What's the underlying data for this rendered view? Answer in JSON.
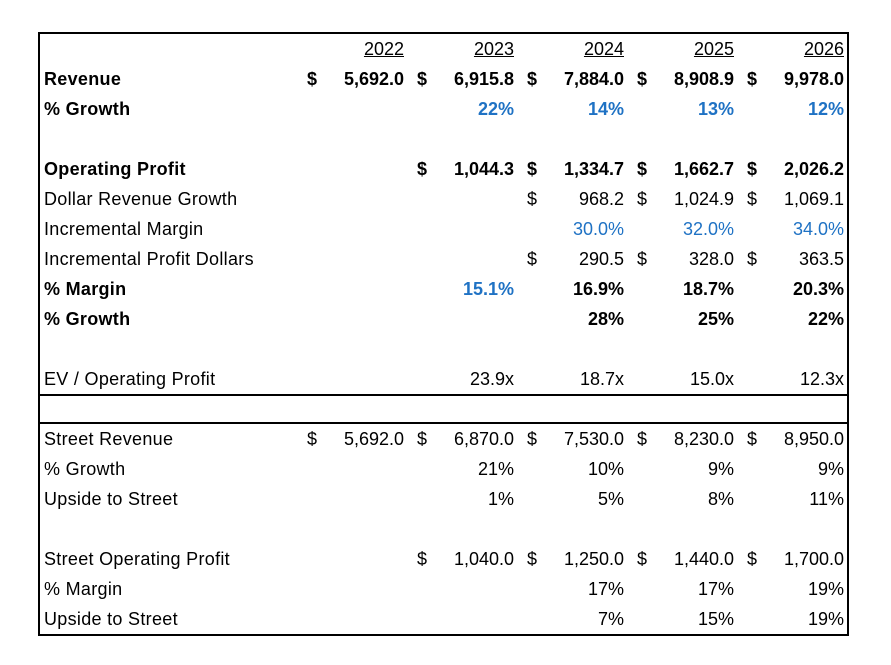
{
  "header": {
    "years": [
      "2022",
      "2023",
      "2024",
      "2025",
      "2026"
    ]
  },
  "sections": [
    {
      "rows": [
        {
          "label": "Revenue",
          "bold": true,
          "cells": [
            {
              "currency": "$",
              "text": "5,692.0"
            },
            {
              "currency": "$",
              "text": "6,915.8"
            },
            {
              "currency": "$",
              "text": "7,884.0"
            },
            {
              "currency": "$",
              "text": "8,908.9"
            },
            {
              "currency": "$",
              "text": "9,978.0"
            }
          ]
        },
        {
          "label": "% Growth",
          "bold": true,
          "cells": [
            null,
            {
              "text": "22%",
              "color": "#1f72c4"
            },
            {
              "text": "14%",
              "color": "#1f72c4"
            },
            {
              "text": "13%",
              "color": "#1f72c4"
            },
            {
              "text": "12%",
              "color": "#1f72c4"
            }
          ]
        }
      ]
    },
    {
      "rows": [
        {
          "label": "Operating Profit",
          "bold": true,
          "cells": [
            null,
            {
              "currency": "$",
              "text": "1,044.3"
            },
            {
              "currency": "$",
              "text": "1,334.7"
            },
            {
              "currency": "$",
              "text": "1,662.7"
            },
            {
              "currency": "$",
              "text": "2,026.2"
            }
          ]
        },
        {
          "label": "Dollar Revenue Growth",
          "bold": false,
          "cells": [
            null,
            null,
            {
              "currency": "$",
              "text": "968.2"
            },
            {
              "currency": "$",
              "text": "1,024.9"
            },
            {
              "currency": "$",
              "text": "1,069.1"
            }
          ]
        },
        {
          "label": "Incremental Margin",
          "bold": false,
          "cells": [
            null,
            null,
            {
              "text": "30.0%",
              "color": "#1f72c4"
            },
            {
              "text": "32.0%",
              "color": "#1f72c4"
            },
            {
              "text": "34.0%",
              "color": "#1f72c4"
            }
          ]
        },
        {
          "label": "Incremental Profit Dollars",
          "bold": false,
          "cells": [
            null,
            null,
            {
              "currency": "$",
              "text": "290.5"
            },
            {
              "currency": "$",
              "text": "328.0"
            },
            {
              "currency": "$",
              "text": "363.5"
            }
          ]
        },
        {
          "label": "% Margin",
          "bold": true,
          "cells": [
            null,
            {
              "text": "15.1%",
              "color": "#1f72c4"
            },
            {
              "text": "16.9%"
            },
            {
              "text": "18.7%"
            },
            {
              "text": "20.3%"
            }
          ]
        },
        {
          "label": "% Growth",
          "bold": true,
          "cells": [
            null,
            null,
            {
              "text": "28%"
            },
            {
              "text": "25%"
            },
            {
              "text": "22%"
            }
          ]
        }
      ]
    },
    {
      "rows": [
        {
          "label": "EV / Operating Profit",
          "bold": false,
          "cells": [
            null,
            {
              "text": "23.9x"
            },
            {
              "text": "18.7x"
            },
            {
              "text": "15.0x"
            },
            {
              "text": "12.3x"
            }
          ]
        }
      ]
    },
    {
      "rows": [
        {
          "label": "Street Revenue",
          "bold": false,
          "cells": [
            {
              "currency": "$",
              "text": "5,692.0"
            },
            {
              "currency": "$",
              "text": "6,870.0"
            },
            {
              "currency": "$",
              "text": "7,530.0"
            },
            {
              "currency": "$",
              "text": "8,230.0"
            },
            {
              "currency": "$",
              "text": "8,950.0"
            }
          ]
        },
        {
          "label": "% Growth",
          "bold": false,
          "cells": [
            null,
            {
              "text": "21%"
            },
            {
              "text": "10%"
            },
            {
              "text": "9%"
            },
            {
              "text": "9%"
            }
          ]
        },
        {
          "label": "Upside to Street",
          "bold": false,
          "cells": [
            null,
            {
              "text": "1%"
            },
            {
              "text": "5%"
            },
            {
              "text": "8%"
            },
            {
              "text": "11%"
            }
          ]
        }
      ]
    },
    {
      "rows": [
        {
          "label": "Street Operating Profit",
          "bold": false,
          "cells": [
            null,
            {
              "currency": "$",
              "text": "1,040.0"
            },
            {
              "currency": "$",
              "text": "1,250.0"
            },
            {
              "currency": "$",
              "text": "1,440.0"
            },
            {
              "currency": "$",
              "text": "1,700.0"
            }
          ]
        },
        {
          "label": "% Margin",
          "bold": false,
          "cells": [
            null,
            null,
            {
              "text": "17%"
            },
            {
              "text": "17%"
            },
            {
              "text": "19%"
            }
          ]
        },
        {
          "label": "Upside to Street",
          "bold": false,
          "cells": [
            null,
            null,
            {
              "text": "7%"
            },
            {
              "text": "15%"
            },
            {
              "text": "19%"
            }
          ]
        }
      ]
    }
  ]
}
